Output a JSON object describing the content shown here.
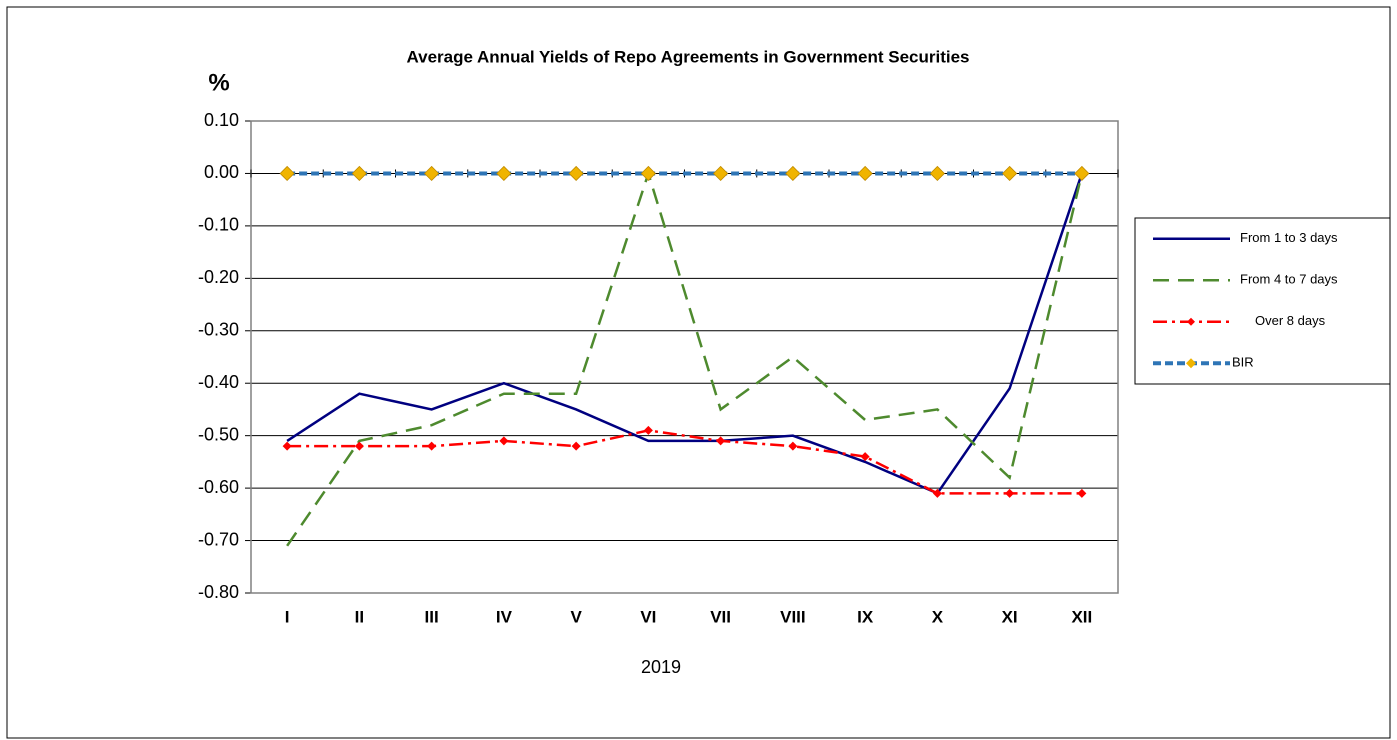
{
  "chart_data": {
    "type": "line",
    "title": "Average Annual Yields of Repo Agreements in Government Securities",
    "y_label": "%",
    "x_label": "2019",
    "categories": [
      "I",
      "II",
      "III",
      "IV",
      "V",
      "VI",
      "VII",
      "VIII",
      "IX",
      "X",
      "XI",
      "XII"
    ],
    "series": [
      {
        "name": "From 1 to 3 days",
        "color": "#000080",
        "line_style": "solid",
        "marker": null,
        "values": [
          -0.51,
          -0.42,
          -0.45,
          -0.4,
          -0.45,
          -0.51,
          -0.51,
          -0.5,
          -0.55,
          -0.61,
          -0.41,
          0.0
        ]
      },
      {
        "name": "From 4 to 7 days",
        "color": "#4e8a2e",
        "line_style": "dashed",
        "marker": null,
        "values": [
          -0.71,
          -0.51,
          -0.48,
          -0.42,
          -0.42,
          0.0,
          -0.45,
          -0.35,
          -0.47,
          -0.45,
          -0.58,
          0.0
        ]
      },
      {
        "name": "Over 8 days",
        "color": "#ff0000",
        "line_style": "dashdot",
        "marker": "diamond",
        "marker_color": "#ff0000",
        "values": [
          -0.52,
          -0.52,
          -0.52,
          -0.51,
          -0.52,
          -0.49,
          -0.51,
          -0.52,
          -0.54,
          -0.61,
          -0.61,
          -0.61
        ]
      },
      {
        "name": "BIR",
        "color": "#2e75b6",
        "line_style": "dotted",
        "marker": "diamond",
        "marker_color": "#f0b400",
        "values": [
          0,
          0,
          0,
          0,
          0,
          0,
          0,
          0,
          0,
          0,
          0,
          0
        ]
      }
    ],
    "ylim": [
      -0.8,
      0.1
    ],
    "yticks": [
      {
        "value": 0.1,
        "label": "0.10"
      },
      {
        "value": 0,
        "label": "0.00"
      },
      {
        "value": -0.1,
        "label": "-0.10"
      },
      {
        "value": -0.2,
        "label": "-0.20"
      },
      {
        "value": -0.3,
        "label": "-0.30"
      },
      {
        "value": -0.4,
        "label": "-0.40"
      },
      {
        "value": -0.5,
        "label": "-0.50"
      },
      {
        "value": -0.6,
        "label": "-0.60"
      },
      {
        "value": -0.7,
        "label": "-0.70"
      },
      {
        "value": -0.8,
        "label": "-0.80"
      }
    ],
    "grid": true,
    "legend": "right"
  }
}
